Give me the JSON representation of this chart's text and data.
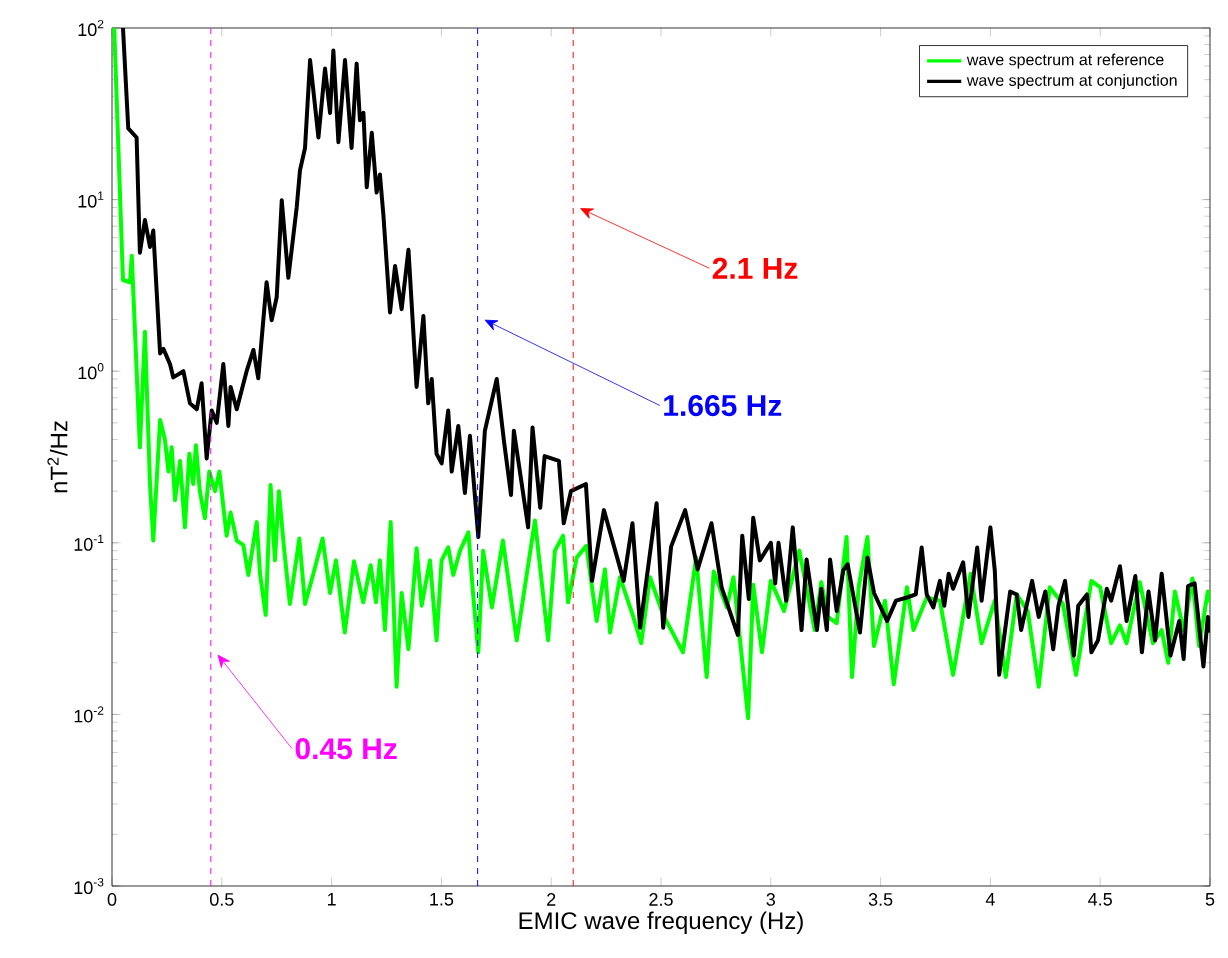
{
  "chart_data": {
    "type": "line",
    "xlabel": "EMIC wave frequency (Hz)",
    "ylabel": "nT$^{2}$/Hz",
    "xlim": [
      0,
      5
    ],
    "ylim": [
      0.001,
      100
    ],
    "log": "y",
    "xticks": [
      0,
      0.5,
      1,
      1.5,
      2,
      2.5,
      3,
      3.5,
      4,
      4.5,
      5
    ],
    "yticks": [
      {
        "value": 0.001,
        "label": "10$^{-3}$"
      },
      {
        "value": 0.01,
        "label": "10$^{-2}$"
      },
      {
        "value": 0.1,
        "label": "10$^{-1}$"
      },
      {
        "value": 1,
        "label": "10$^{0}$"
      },
      {
        "value": 10,
        "label": "10$^{1}$"
      },
      {
        "value": 100,
        "label": "10$^{2}$"
      }
    ],
    "legend": "top right",
    "series": [
      {
        "name": "wave spectrum at reference",
        "color": "#00ff00",
        "x": [
          0.01,
          0.05,
          0.082,
          0.09,
          0.127,
          0.15,
          0.173,
          0.188,
          0.219,
          0.241,
          0.257,
          0.272,
          0.287,
          0.31,
          0.332,
          0.352,
          0.37,
          0.382,
          0.4,
          0.423,
          0.443,
          0.469,
          0.489,
          0.522,
          0.54,
          0.568,
          0.598,
          0.621,
          0.659,
          0.674,
          0.7,
          0.722,
          0.742,
          0.76,
          0.783,
          0.81,
          0.853,
          0.879,
          0.917,
          0.959,
          0.993,
          1.02,
          1.06,
          1.102,
          1.144,
          1.178,
          1.202,
          1.22,
          1.243,
          1.269,
          1.296,
          1.319,
          1.35,
          1.387,
          1.41,
          1.448,
          1.478,
          1.501,
          1.531,
          1.554,
          1.585,
          1.623,
          1.645,
          1.668,
          1.69,
          1.73,
          1.78,
          1.843,
          1.926,
          1.986,
          2.017,
          2.054,
          2.077,
          2.116,
          2.16,
          2.207,
          2.245,
          2.268,
          2.313,
          2.374,
          2.41,
          2.45,
          2.51,
          2.6,
          2.66,
          2.708,
          2.74,
          2.8,
          2.83,
          2.897,
          2.92,
          2.96,
          3.0,
          3.04,
          3.06,
          3.13,
          3.2,
          3.23,
          3.26,
          3.3,
          3.345,
          3.37,
          3.4,
          3.44,
          3.47,
          3.52,
          3.56,
          3.62,
          3.65,
          3.71,
          3.77,
          3.83,
          3.88,
          3.91,
          3.96,
          4.02,
          4.07,
          4.12,
          4.17,
          4.22,
          4.27,
          4.33,
          4.39,
          4.46,
          4.5,
          4.55,
          4.59,
          4.62,
          4.68,
          4.74,
          4.78,
          4.81,
          4.84,
          4.88,
          4.92,
          4.95,
          4.99,
          5.0
        ],
        "values": [
          100,
          3.4,
          3.3,
          4.7,
          0.36,
          1.7,
          0.22,
          0.103,
          0.52,
          0.4,
          0.26,
          0.36,
          0.177,
          0.3,
          0.123,
          0.33,
          0.22,
          0.37,
          0.2,
          0.139,
          0.26,
          0.2,
          0.26,
          0.11,
          0.15,
          0.103,
          0.097,
          0.065,
          0.132,
          0.066,
          0.038,
          0.217,
          0.079,
          0.2,
          0.094,
          0.044,
          0.106,
          0.044,
          0.066,
          0.106,
          0.051,
          0.079,
          0.03,
          0.078,
          0.045,
          0.074,
          0.045,
          0.079,
          0.031,
          0.132,
          0.0145,
          0.051,
          0.024,
          0.093,
          0.043,
          0.079,
          0.027,
          0.079,
          0.094,
          0.065,
          0.09,
          0.115,
          0.049,
          0.023,
          0.09,
          0.042,
          0.103,
          0.027,
          0.135,
          0.027,
          0.09,
          0.11,
          0.045,
          0.082,
          0.096,
          0.035,
          0.07,
          0.03,
          0.063,
          0.037,
          0.026,
          0.063,
          0.038,
          0.023,
          0.082,
          0.0165,
          0.068,
          0.042,
          0.063,
          0.0095,
          0.057,
          0.023,
          0.06,
          0.046,
          0.04,
          0.09,
          0.031,
          0.059,
          0.037,
          0.034,
          0.108,
          0.0165,
          0.055,
          0.108,
          0.025,
          0.046,
          0.015,
          0.055,
          0.031,
          0.048,
          0.046,
          0.017,
          0.04,
          0.066,
          0.026,
          0.046,
          0.0165,
          0.05,
          0.04,
          0.0145,
          0.055,
          0.044,
          0.017,
          0.06,
          0.055,
          0.026,
          0.033,
          0.026,
          0.059,
          0.026,
          0.031,
          0.02,
          0.052,
          0.031,
          0.062,
          0.025,
          0.052,
          0.045
        ]
      },
      {
        "name": "wave spectrum at conjunction",
        "color": "#000000",
        "x": [
          0.05,
          0.074,
          0.112,
          0.127,
          0.15,
          0.173,
          0.188,
          0.219,
          0.234,
          0.264,
          0.279,
          0.325,
          0.355,
          0.386,
          0.408,
          0.431,
          0.454,
          0.477,
          0.507,
          0.53,
          0.54,
          0.568,
          0.613,
          0.644,
          0.666,
          0.704,
          0.727,
          0.75,
          0.773,
          0.803,
          0.841,
          0.856,
          0.879,
          0.902,
          0.94,
          0.97,
          0.993,
          1.008,
          1.031,
          1.061,
          1.091,
          1.114,
          1.129,
          1.145,
          1.16,
          1.183,
          1.205,
          1.22,
          1.236,
          1.266,
          1.289,
          1.319,
          1.35,
          1.387,
          1.418,
          1.44,
          1.456,
          1.478,
          1.501,
          1.531,
          1.547,
          1.577,
          1.607,
          1.63,
          1.668,
          1.698,
          1.752,
          1.785,
          1.817,
          1.83,
          1.895,
          1.915,
          1.95,
          1.97,
          2.035,
          2.057,
          2.09,
          2.158,
          2.186,
          2.24,
          2.33,
          2.37,
          2.405,
          2.48,
          2.51,
          2.546,
          2.61,
          2.667,
          2.73,
          2.776,
          2.85,
          2.87,
          2.9,
          2.92,
          2.95,
          3.0,
          3.02,
          3.035,
          3.07,
          3.1,
          3.14,
          3.163,
          3.21,
          3.23,
          3.255,
          3.27,
          3.3,
          3.33,
          3.35,
          3.406,
          3.44,
          3.47,
          3.53,
          3.57,
          3.62,
          3.66,
          3.687,
          3.71,
          3.74,
          3.77,
          3.79,
          3.81,
          3.83,
          3.876,
          3.9,
          3.94,
          3.96,
          4.0,
          4.02,
          4.04,
          4.09,
          4.12,
          4.14,
          4.19,
          4.22,
          4.25,
          4.286,
          4.31,
          4.34,
          4.38,
          4.4,
          4.44,
          4.46,
          4.49,
          4.53,
          4.55,
          4.59,
          4.62,
          4.66,
          4.69,
          4.72,
          4.75,
          4.78,
          4.82,
          4.86,
          4.88,
          4.9,
          4.93,
          4.97,
          4.99,
          5.0
        ],
        "values": [
          100,
          26,
          23,
          4.9,
          7.6,
          5.3,
          6.6,
          1.27,
          1.35,
          1.1,
          0.92,
          1.0,
          0.65,
          0.6,
          0.85,
          0.31,
          0.59,
          0.5,
          1.1,
          0.48,
          0.81,
          0.6,
          1.0,
          1.33,
          0.91,
          3.3,
          1.98,
          2.7,
          9.9,
          3.5,
          9,
          14.8,
          20,
          65,
          23,
          58,
          32,
          74,
          21.6,
          65,
          20,
          62,
          29,
          32,
          11.8,
          24.5,
          11,
          14,
          8.1,
          2.2,
          4.1,
          2.3,
          5.1,
          0.81,
          2.1,
          0.65,
          0.9,
          0.33,
          0.29,
          0.59,
          0.26,
          0.48,
          0.195,
          0.42,
          0.108,
          0.45,
          0.9,
          0.39,
          0.19,
          0.45,
          0.123,
          0.47,
          0.16,
          0.32,
          0.3,
          0.13,
          0.2,
          0.22,
          0.06,
          0.155,
          0.06,
          0.13,
          0.032,
          0.17,
          0.032,
          0.095,
          0.155,
          0.07,
          0.13,
          0.055,
          0.029,
          0.11,
          0.047,
          0.14,
          0.079,
          0.1,
          0.058,
          0.1,
          0.046,
          0.123,
          0.031,
          0.08,
          0.031,
          0.054,
          0.031,
          0.08,
          0.04,
          0.069,
          0.075,
          0.03,
          0.082,
          0.051,
          0.035,
          0.046,
          0.048,
          0.05,
          0.094,
          0.05,
          0.042,
          0.06,
          0.043,
          0.066,
          0.054,
          0.077,
          0.037,
          0.094,
          0.046,
          0.123,
          0.069,
          0.017,
          0.052,
          0.05,
          0.031,
          0.06,
          0.037,
          0.052,
          0.024,
          0.043,
          0.06,
          0.022,
          0.043,
          0.05,
          0.023,
          0.027,
          0.054,
          0.046,
          0.073,
          0.035,
          0.064,
          0.023,
          0.052,
          0.027,
          0.066,
          0.022,
          0.035,
          0.021,
          0.056,
          0.058,
          0.019,
          0.037,
          0.03
        ]
      }
    ],
    "ref_lines": [
      {
        "axis": "x",
        "value": 0.45,
        "label": "0.45 Hz",
        "color": "#ff00ff",
        "line_style": "dashed"
      },
      {
        "axis": "x",
        "value": 1.665,
        "label": "1.665 Hz",
        "color": "#0000ff",
        "line_style": "dashed"
      },
      {
        "axis": "x",
        "value": 2.1,
        "label": "2.1 Hz",
        "color": "#ff0000",
        "line_style": "dashed"
      }
    ]
  }
}
